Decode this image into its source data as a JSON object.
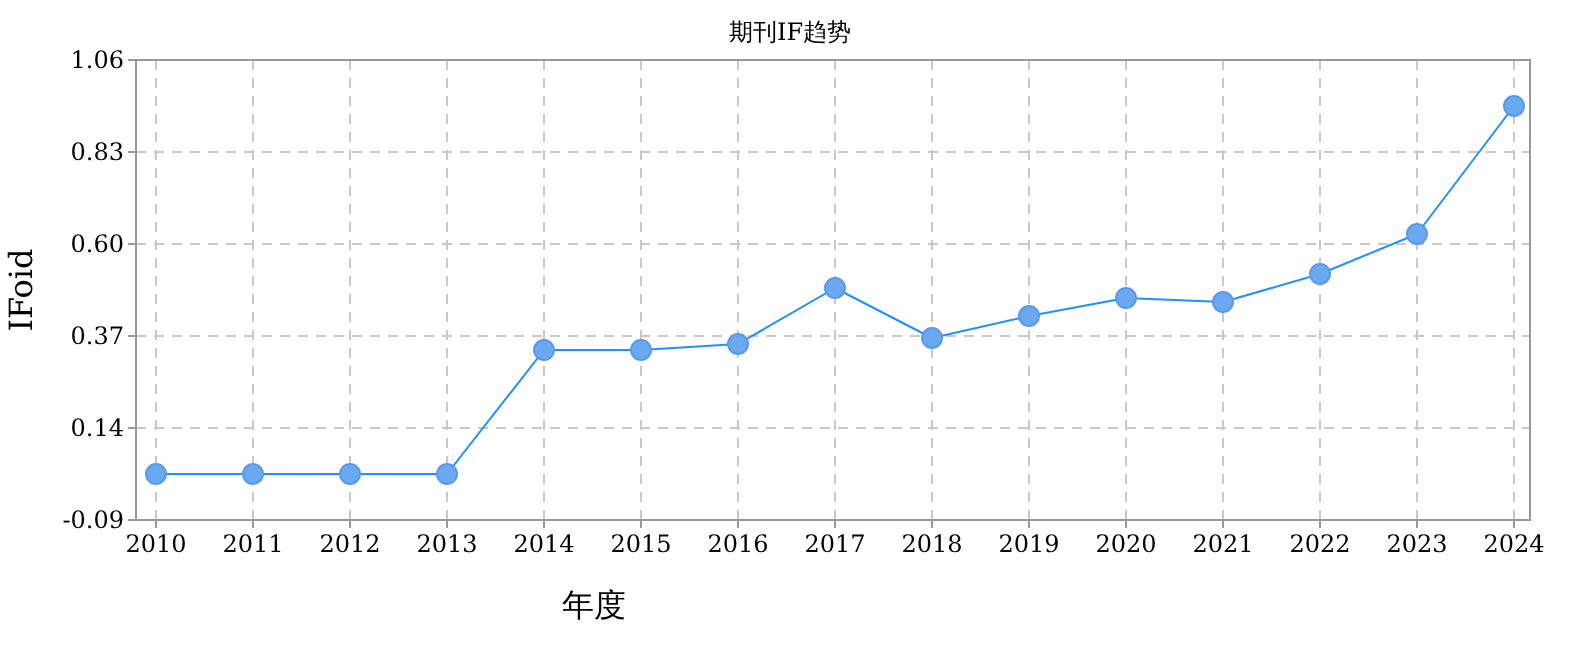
{
  "chart_data": {
    "type": "line",
    "title": "期刊IF趋势",
    "xlabel": "年度",
    "ylabel": "IFoid",
    "categories": [
      "2010",
      "2011",
      "2012",
      "2013",
      "2014",
      "2015",
      "2016",
      "2017",
      "2018",
      "2019",
      "2020",
      "2021",
      "2022",
      "2023",
      "2024"
    ],
    "series": [
      {
        "color": "#1e90ff",
        "values": [
          0.025,
          0.025,
          0.025,
          0.025,
          0.335,
          0.335,
          0.35,
          0.49,
          0.365,
          0.42,
          0.465,
          0.455,
          0.525,
          0.625,
          0.945
        ]
      }
    ],
    "ylim": [
      -0.09,
      1.06
    ],
    "yticks": [
      -0.09,
      0.14,
      0.37,
      {
        "value": 0.6,
        "label": "0.60"
      },
      0.83,
      1.06
    ],
    "grid": true,
    "marker": "circle"
  }
}
